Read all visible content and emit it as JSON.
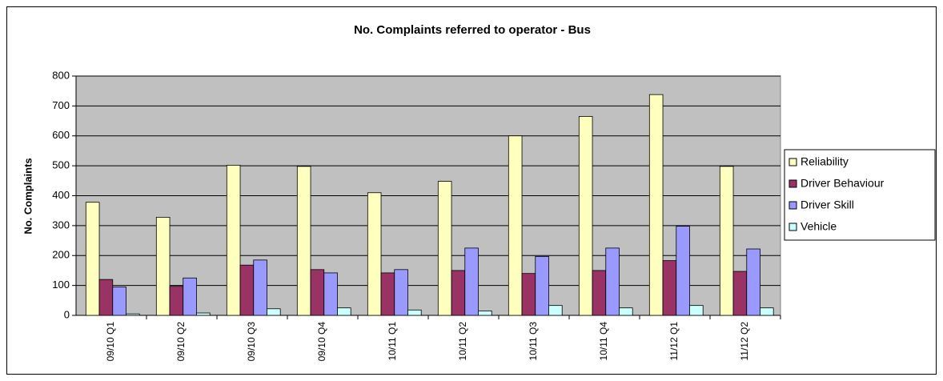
{
  "chart_data": {
    "type": "bar",
    "title": "No. Complaints referred to operator - Bus",
    "y_label": "No. Complaints",
    "categories": [
      "09/10 Q1",
      "09/10 Q2",
      "09/10 Q3",
      "09/10 Q4",
      "10/11 Q1",
      "10/11 Q2",
      "10/11 Q3",
      "10/11 Q4",
      "11/12 Q1",
      "11/12 Q2"
    ],
    "series": [
      {
        "name": "Reliability",
        "color": "#ffffc0",
        "values": [
          378,
          328,
          502,
          498,
          410,
          448,
          600,
          665,
          738,
          498
        ]
      },
      {
        "name": "Driver Behaviour",
        "color": "#993366",
        "values": [
          120,
          97,
          168,
          153,
          142,
          150,
          140,
          150,
          183,
          147
        ]
      },
      {
        "name": "Driver Skill",
        "color": "#9999ff",
        "values": [
          95,
          125,
          185,
          142,
          153,
          225,
          197,
          225,
          298,
          222
        ]
      },
      {
        "name": "Vehicle",
        "color": "#ccffff",
        "values": [
          5,
          8,
          22,
          25,
          18,
          15,
          33,
          25,
          33,
          25
        ]
      }
    ],
    "ylim": [
      0,
      800
    ],
    "yticks": [
      0,
      100,
      200,
      300,
      400,
      500,
      600,
      700,
      800
    ],
    "grid": true,
    "legend": "right",
    "plot_background": "#c0c0c0"
  }
}
